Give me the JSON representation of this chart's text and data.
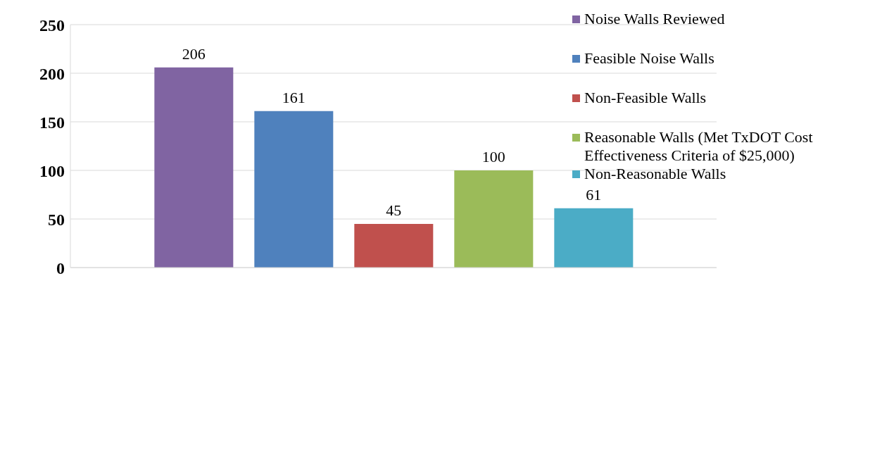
{
  "chart_data": {
    "type": "bar",
    "categories": [
      null
    ],
    "series": [
      {
        "name": "Noise Walls Reviewed",
        "color": "#8064a2",
        "values": [
          206
        ]
      },
      {
        "name": "Feasible Noise Walls",
        "color": "#4f81bd",
        "values": [
          161
        ]
      },
      {
        "name": "Non-Feasible Walls",
        "color": "#c0504d",
        "values": [
          45
        ]
      },
      {
        "name": "Reasonable Walls (Met TxDOT Cost Effectiveness Criteria of $25,000)",
        "color": "#9bbb59",
        "values": [
          100
        ]
      },
      {
        "name": "Non-Reasonable Walls",
        "color": "#4bacc6",
        "values": [
          61
        ]
      }
    ],
    "ylim": [
      0,
      250
    ],
    "yticks": [
      0,
      50,
      100,
      150,
      200,
      250
    ],
    "grid": "y",
    "legend": "top right",
    "data_labels": true
  }
}
